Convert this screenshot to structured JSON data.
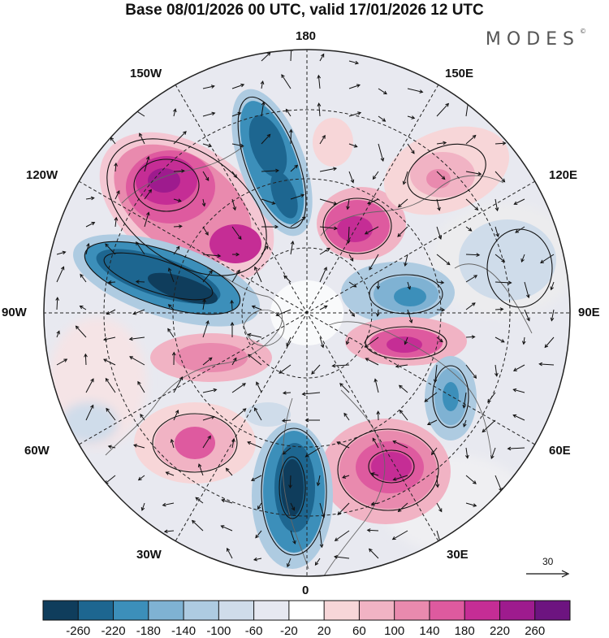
{
  "title": "Base 08/01/2026 00 UTC, valid 17/01/2026 12 UTC",
  "brand": "MODES",
  "brand_mark": "©",
  "longitude_labels": {
    "top": "180",
    "top_left": "150W",
    "top_right": "150E",
    "upper_left": "120W",
    "upper_right": "120E",
    "left": "90W",
    "right": "90E",
    "lower_left": "60W",
    "lower_right": "60E",
    "bottom_left": "30W",
    "bottom_right": "30E",
    "bottom": "0"
  },
  "wind_scale_value": "30",
  "colorbar": {
    "colors": [
      "#0f3d5c",
      "#1d6690",
      "#3c8fba",
      "#7fb2d3",
      "#aecbe1",
      "#cfdcea",
      "#e6e8f1",
      "#ffffff",
      "#f7d6d8",
      "#f1b3c4",
      "#e98aae",
      "#de5a9f",
      "#c52d95",
      "#9e1b8e",
      "#6d1480"
    ],
    "tick_labels": [
      "-260",
      "-220",
      "-180",
      "-140",
      "-100",
      "-60",
      "-20",
      "20",
      "60",
      "100",
      "140",
      "180",
      "220",
      "260"
    ]
  }
}
